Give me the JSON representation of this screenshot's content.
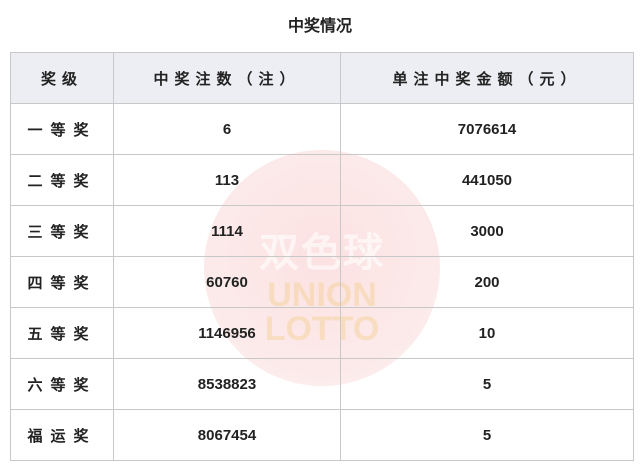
{
  "title": "中奖情况",
  "watermark": {
    "logo_cn": "双色球",
    "logo_en_1": "UNION",
    "logo_en_2": "LOTTO"
  },
  "table": {
    "headers": [
      "奖级",
      "中奖注数（注）",
      "单注中奖金额（元）"
    ],
    "rows": [
      {
        "level": "一等奖",
        "count": "6",
        "amount": "7076614"
      },
      {
        "level": "二等奖",
        "count": "113",
        "amount": "441050"
      },
      {
        "level": "三等奖",
        "count": "1114",
        "amount": "3000"
      },
      {
        "level": "四等奖",
        "count": "60760",
        "amount": "200"
      },
      {
        "level": "五等奖",
        "count": "1146956",
        "amount": "10"
      },
      {
        "level": "六等奖",
        "count": "8538823",
        "amount": "5"
      },
      {
        "level": "福运奖",
        "count": "8067454",
        "amount": "5"
      }
    ]
  }
}
